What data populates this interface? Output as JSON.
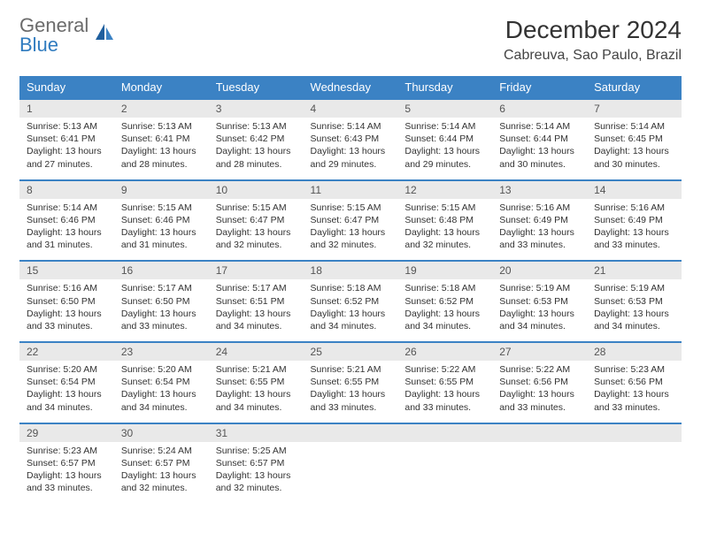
{
  "logo": {
    "text_gray": "General",
    "text_blue": "Blue"
  },
  "title": "December 2024",
  "location": "Cabreuva, Sao Paulo, Brazil",
  "weekday_headers": [
    "Sunday",
    "Monday",
    "Tuesday",
    "Wednesday",
    "Thursday",
    "Friday",
    "Saturday"
  ],
  "header_bg": "#3b82c4",
  "row_divider_color": "#3b82c4",
  "daynum_bg": "#e9e9e9",
  "days": [
    {
      "n": 1,
      "sunrise": "5:13 AM",
      "sunset": "6:41 PM",
      "daylight": "13 hours and 27 minutes."
    },
    {
      "n": 2,
      "sunrise": "5:13 AM",
      "sunset": "6:41 PM",
      "daylight": "13 hours and 28 minutes."
    },
    {
      "n": 3,
      "sunrise": "5:13 AM",
      "sunset": "6:42 PM",
      "daylight": "13 hours and 28 minutes."
    },
    {
      "n": 4,
      "sunrise": "5:14 AM",
      "sunset": "6:43 PM",
      "daylight": "13 hours and 29 minutes."
    },
    {
      "n": 5,
      "sunrise": "5:14 AM",
      "sunset": "6:44 PM",
      "daylight": "13 hours and 29 minutes."
    },
    {
      "n": 6,
      "sunrise": "5:14 AM",
      "sunset": "6:44 PM",
      "daylight": "13 hours and 30 minutes."
    },
    {
      "n": 7,
      "sunrise": "5:14 AM",
      "sunset": "6:45 PM",
      "daylight": "13 hours and 30 minutes."
    },
    {
      "n": 8,
      "sunrise": "5:14 AM",
      "sunset": "6:46 PM",
      "daylight": "13 hours and 31 minutes."
    },
    {
      "n": 9,
      "sunrise": "5:15 AM",
      "sunset": "6:46 PM",
      "daylight": "13 hours and 31 minutes."
    },
    {
      "n": 10,
      "sunrise": "5:15 AM",
      "sunset": "6:47 PM",
      "daylight": "13 hours and 32 minutes."
    },
    {
      "n": 11,
      "sunrise": "5:15 AM",
      "sunset": "6:47 PM",
      "daylight": "13 hours and 32 minutes."
    },
    {
      "n": 12,
      "sunrise": "5:15 AM",
      "sunset": "6:48 PM",
      "daylight": "13 hours and 32 minutes."
    },
    {
      "n": 13,
      "sunrise": "5:16 AM",
      "sunset": "6:49 PM",
      "daylight": "13 hours and 33 minutes."
    },
    {
      "n": 14,
      "sunrise": "5:16 AM",
      "sunset": "6:49 PM",
      "daylight": "13 hours and 33 minutes."
    },
    {
      "n": 15,
      "sunrise": "5:16 AM",
      "sunset": "6:50 PM",
      "daylight": "13 hours and 33 minutes."
    },
    {
      "n": 16,
      "sunrise": "5:17 AM",
      "sunset": "6:50 PM",
      "daylight": "13 hours and 33 minutes."
    },
    {
      "n": 17,
      "sunrise": "5:17 AM",
      "sunset": "6:51 PM",
      "daylight": "13 hours and 34 minutes."
    },
    {
      "n": 18,
      "sunrise": "5:18 AM",
      "sunset": "6:52 PM",
      "daylight": "13 hours and 34 minutes."
    },
    {
      "n": 19,
      "sunrise": "5:18 AM",
      "sunset": "6:52 PM",
      "daylight": "13 hours and 34 minutes."
    },
    {
      "n": 20,
      "sunrise": "5:19 AM",
      "sunset": "6:53 PM",
      "daylight": "13 hours and 34 minutes."
    },
    {
      "n": 21,
      "sunrise": "5:19 AM",
      "sunset": "6:53 PM",
      "daylight": "13 hours and 34 minutes."
    },
    {
      "n": 22,
      "sunrise": "5:20 AM",
      "sunset": "6:54 PM",
      "daylight": "13 hours and 34 minutes."
    },
    {
      "n": 23,
      "sunrise": "5:20 AM",
      "sunset": "6:54 PM",
      "daylight": "13 hours and 34 minutes."
    },
    {
      "n": 24,
      "sunrise": "5:21 AM",
      "sunset": "6:55 PM",
      "daylight": "13 hours and 34 minutes."
    },
    {
      "n": 25,
      "sunrise": "5:21 AM",
      "sunset": "6:55 PM",
      "daylight": "13 hours and 33 minutes."
    },
    {
      "n": 26,
      "sunrise": "5:22 AM",
      "sunset": "6:55 PM",
      "daylight": "13 hours and 33 minutes."
    },
    {
      "n": 27,
      "sunrise": "5:22 AM",
      "sunset": "6:56 PM",
      "daylight": "13 hours and 33 minutes."
    },
    {
      "n": 28,
      "sunrise": "5:23 AM",
      "sunset": "6:56 PM",
      "daylight": "13 hours and 33 minutes."
    },
    {
      "n": 29,
      "sunrise": "5:23 AM",
      "sunset": "6:57 PM",
      "daylight": "13 hours and 33 minutes."
    },
    {
      "n": 30,
      "sunrise": "5:24 AM",
      "sunset": "6:57 PM",
      "daylight": "13 hours and 32 minutes."
    },
    {
      "n": 31,
      "sunrise": "5:25 AM",
      "sunset": "6:57 PM",
      "daylight": "13 hours and 32 minutes."
    }
  ],
  "labels": {
    "sunrise": "Sunrise: ",
    "sunset": "Sunset: ",
    "daylight": "Daylight: "
  },
  "start_weekday": 0,
  "total_cells": 35
}
